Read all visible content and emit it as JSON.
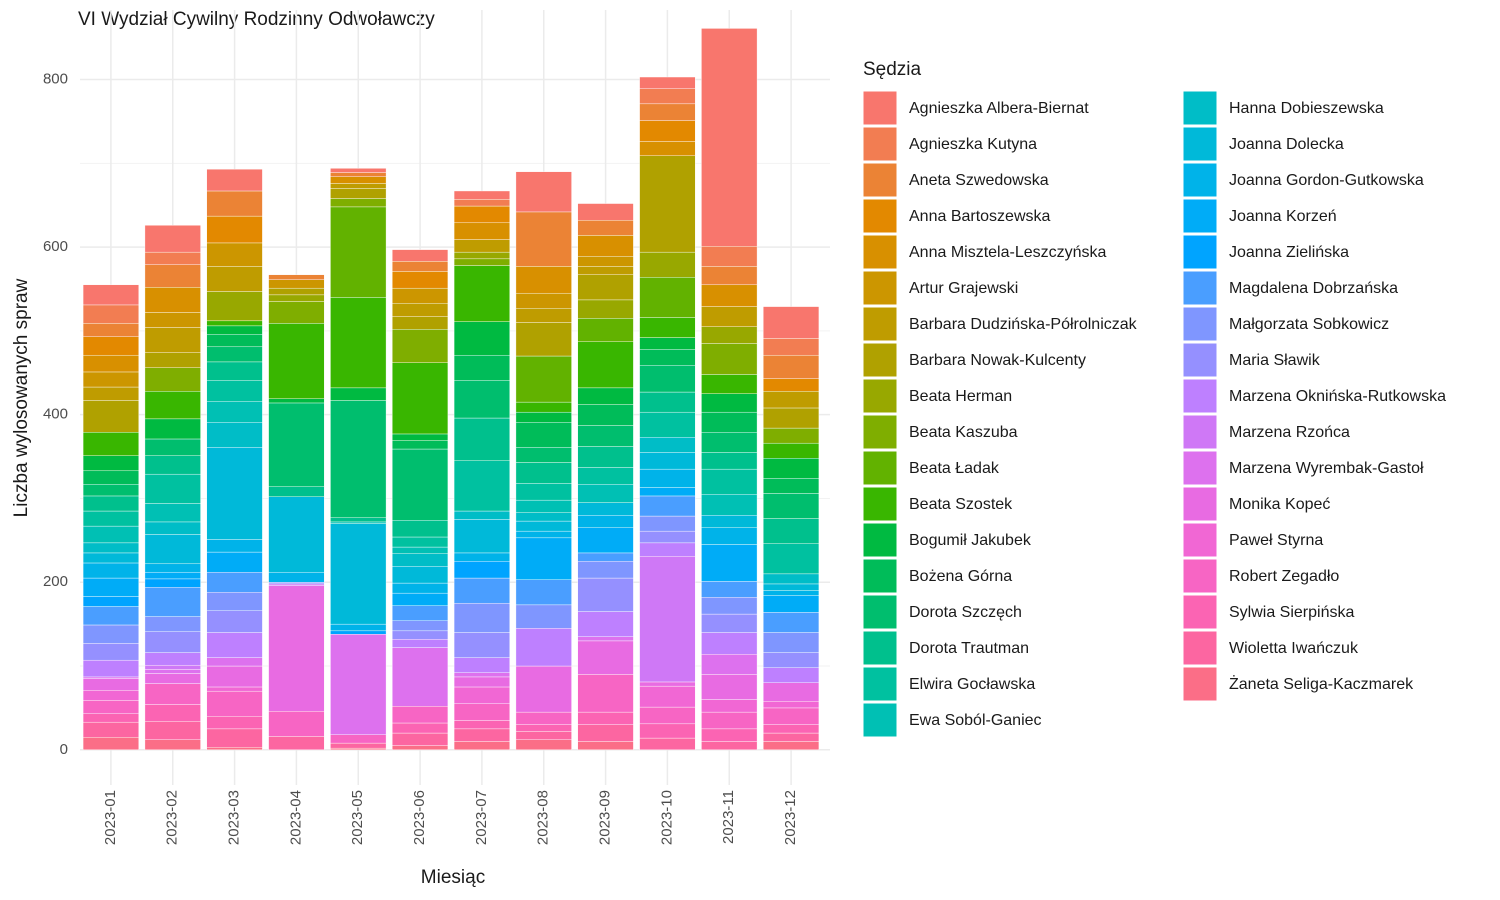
{
  "chart_data": {
    "type": "stacked_bar",
    "title": "VI Wydział Cywilny Rodzinny Odwoławczy",
    "x_label": "Miesiąc",
    "y_label": "Liczba wylosowanych spraw",
    "legend_title": "Sędzia",
    "categories": [
      "2023-01",
      "2023-02",
      "2023-03",
      "2023-04",
      "2023-05",
      "2023-06",
      "2023-07",
      "2023-08",
      "2023-09",
      "2023-10",
      "2023-11",
      "2023-12"
    ],
    "ylim": [
      -42,
      883
    ],
    "yticks": [
      0,
      200,
      400,
      600,
      800
    ],
    "yminor": [
      100,
      300,
      500,
      700
    ],
    "grid": true,
    "legend": "right",
    "series": [
      {
        "name": "Agnieszka Albera-Biernat",
        "color": "#F8766D",
        "values": [
          24,
          32,
          26,
          0,
          5,
          14,
          10,
          48,
          20,
          14,
          260,
          38
        ]
      },
      {
        "name": "Agnieszka Kutyna",
        "color": "#F27D52",
        "values": [
          22,
          15,
          0,
          0,
          0,
          0,
          8,
          0,
          0,
          18,
          24,
          20
        ]
      },
      {
        "name": "Aneta Szwedowska",
        "color": "#EB8335",
        "values": [
          16,
          27,
          30,
          6,
          5,
          12,
          0,
          65,
          18,
          20,
          22,
          28
        ]
      },
      {
        "name": "Anna Bartoszewska",
        "color": "#E38900",
        "values": [
          22,
          0,
          32,
          0,
          0,
          20,
          20,
          0,
          0,
          25,
          0,
          15
        ]
      },
      {
        "name": "Anna Misztela-Leszczyńska",
        "color": "#D89000",
        "values": [
          20,
          30,
          0,
          0,
          8,
          0,
          20,
          32,
          25,
          17,
          26,
          0
        ]
      },
      {
        "name": "Artur Grajewski",
        "color": "#CC9600",
        "values": [
          18,
          18,
          28,
          10,
          0,
          18,
          0,
          18,
          12,
          0,
          0,
          0
        ]
      },
      {
        "name": "Barbara Dudzińska-Półrolniczak",
        "color": "#BF9C00",
        "values": [
          16,
          30,
          30,
          0,
          6,
          16,
          15,
          17,
          10,
          0,
          24,
          20
        ]
      },
      {
        "name": "Barbara Nowak-Kulcenty",
        "color": "#B0A100",
        "values": [
          38,
          18,
          0,
          8,
          12,
          15,
          0,
          40,
          30,
          115,
          0,
          24
        ]
      },
      {
        "name": "Beata Herman",
        "color": "#98A800",
        "values": [
          0,
          0,
          35,
          8,
          0,
          0,
          8,
          0,
          22,
          30,
          20,
          0
        ]
      },
      {
        "name": "Beata Kaszuba",
        "color": "#7FAE00",
        "values": [
          0,
          28,
          0,
          26,
          10,
          40,
          8,
          0,
          0,
          0,
          37,
          18
        ]
      },
      {
        "name": "Beata Ładak",
        "color": "#62B200",
        "values": [
          0,
          0,
          0,
          0,
          108,
          0,
          0,
          55,
          28,
          48,
          0,
          0
        ]
      },
      {
        "name": "Beata Szostek",
        "color": "#39B600",
        "values": [
          28,
          33,
          6,
          90,
          108,
          85,
          67,
          12,
          55,
          24,
          23,
          18
        ]
      },
      {
        "name": "Bogumił Jakubek",
        "color": "#00BA41",
        "values": [
          18,
          24,
          10,
          5,
          15,
          8,
          40,
          12,
          20,
          14,
          22,
          24
        ]
      },
      {
        "name": "Bożena Górna",
        "color": "#00BC59",
        "values": [
          16,
          0,
          15,
          0,
          0,
          10,
          30,
          30,
          25,
          19,
          24,
          18
        ]
      },
      {
        "name": "Dorota Szczęch",
        "color": "#00BE6E",
        "values": [
          14,
          20,
          18,
          100,
          140,
          85,
          45,
          18,
          25,
          32,
          24,
          30
        ]
      },
      {
        "name": "Dorota Trautman",
        "color": "#00C08D",
        "values": [
          18,
          22,
          22,
          12,
          5,
          20,
          51,
          25,
          25,
          24,
          20,
          30
        ]
      },
      {
        "name": "Elwira Gocławska",
        "color": "#00C1A0",
        "values": [
          18,
          35,
          25,
          0,
          0,
          12,
          60,
          20,
          20,
          30,
          30,
          36
        ]
      },
      {
        "name": "Ewa Soból-Ganiec",
        "color": "#00C0B4",
        "values": [
          20,
          22,
          25,
          0,
          2,
          8,
          0,
          15,
          22,
          0,
          25,
          0
        ]
      },
      {
        "name": "Hanna Dobieszewska",
        "color": "#00BDC7",
        "values": [
          12,
          15,
          30,
          0,
          0,
          15,
          10,
          10,
          0,
          18,
          0,
          12
        ]
      },
      {
        "name": "Joanna Dolecka",
        "color": "#00B9D9",
        "values": [
          12,
          35,
          110,
          90,
          120,
          20,
          40,
          12,
          15,
          20,
          15,
          8
        ]
      },
      {
        "name": "Joanna Gordon-Gutkowska",
        "color": "#00B3E9",
        "values": [
          18,
          10,
          15,
          12,
          8,
          12,
          10,
          8,
          15,
          22,
          20,
          6
        ]
      },
      {
        "name": "Joanna Korzeń",
        "color": "#00ACF7",
        "values": [
          22,
          8,
          24,
          0,
          0,
          15,
          0,
          50,
          30,
          10,
          44,
          20
        ]
      },
      {
        "name": "Joanna Zielińska",
        "color": "#00A4FF",
        "values": [
          12,
          10,
          0,
          0,
          4,
          0,
          20,
          0,
          0,
          0,
          0,
          0
        ]
      },
      {
        "name": "Magdalena Dobrzańska",
        "color": "#4A9EFF",
        "values": [
          22,
          35,
          24,
          0,
          0,
          18,
          30,
          30,
          10,
          24,
          19,
          24
        ]
      },
      {
        "name": "Małgorzata Sobkowicz",
        "color": "#7F96FF",
        "values": [
          22,
          18,
          22,
          0,
          0,
          12,
          35,
          28,
          20,
          18,
          20,
          24
        ]
      },
      {
        "name": "Maria Sławik",
        "color": "#9590FF",
        "values": [
          20,
          25,
          26,
          2,
          0,
          10,
          30,
          0,
          40,
          14,
          22,
          18
        ]
      },
      {
        "name": "Marzena Oknińska-Rutkowska",
        "color": "#BE80FF",
        "values": [
          20,
          15,
          30,
          0,
          0,
          10,
          18,
          45,
          30,
          16,
          26,
          18
        ]
      },
      {
        "name": "Marzena Rzońca",
        "color": "#CF78F6",
        "values": [
          0,
          5,
          0,
          2,
          0,
          0,
          0,
          0,
          0,
          150,
          0,
          0
        ]
      },
      {
        "name": "Marzena Wyrembak-Gastoł",
        "color": "#DD71EE",
        "values": [
          2,
          5,
          10,
          0,
          120,
          70,
          5,
          0,
          5,
          0,
          24,
          0
        ]
      },
      {
        "name": "Monika Kopeć",
        "color": "#E86BE2",
        "values": [
          14,
          12,
          25,
          150,
          0,
          0,
          12,
          55,
          40,
          5,
          30,
          22
        ]
      },
      {
        "name": "Paweł Styrna",
        "color": "#F167D4",
        "values": [
          12,
          0,
          5,
          0,
          0,
          0,
          20,
          0,
          0,
          25,
          15,
          8
        ]
      },
      {
        "name": "Robert Zegadło",
        "color": "#F765C4",
        "values": [
          16,
          25,
          30,
          30,
          10,
          20,
          20,
          15,
          45,
          20,
          20,
          20
        ]
      },
      {
        "name": "Sylwia Sierpińska",
        "color": "#FB64B3",
        "values": [
          10,
          20,
          15,
          0,
          0,
          12,
          10,
          8,
          15,
          17,
          15,
          10
        ]
      },
      {
        "name": "Wioletta Iwańczuk",
        "color": "#FC66A1",
        "values": [
          18,
          22,
          22,
          16,
          6,
          15,
          15,
          10,
          20,
          14,
          10,
          10
        ]
      },
      {
        "name": "Żaneta Seliga-Kaczmarek",
        "color": "#FB6E87",
        "values": [
          15,
          12,
          3,
          0,
          2,
          5,
          10,
          12,
          10,
          0,
          0,
          10
        ]
      }
    ]
  }
}
